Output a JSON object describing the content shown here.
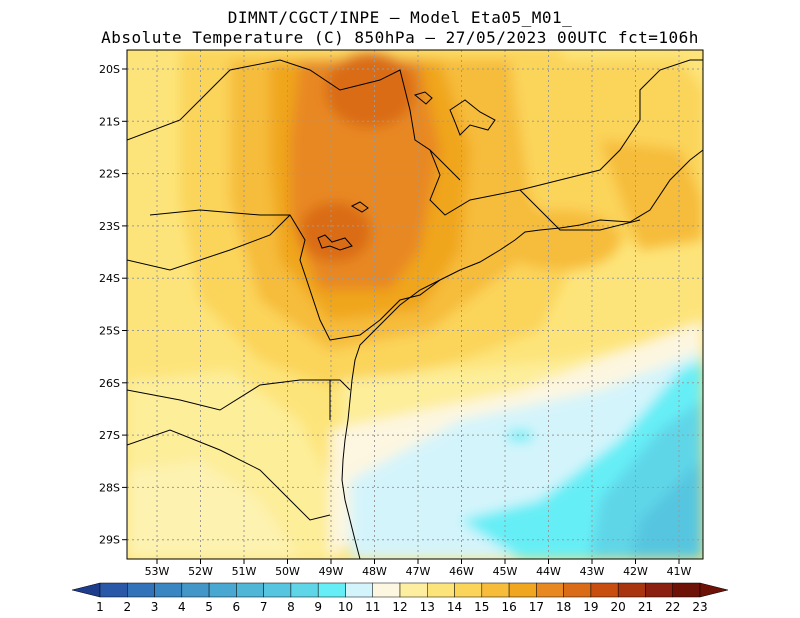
{
  "header": {
    "line1": "DIMNT/CGCT/INPE –  Model Eta05_M01_",
    "line2": "Absolute Temperature (C) 850hPa –  27/05/2023 00UTC fct=106h"
  },
  "map": {
    "lat_labels": [
      "20S",
      "21S",
      "22S",
      "23S",
      "24S",
      "25S",
      "26S",
      "27S",
      "28S",
      "29S"
    ],
    "lon_labels": [
      "53W",
      "52W",
      "51W",
      "50W",
      "49W",
      "48W",
      "47W",
      "46W",
      "45W",
      "44W",
      "43W",
      "42W",
      "41W"
    ]
  },
  "colorbar": {
    "labels": [
      "1",
      "2",
      "3",
      "4",
      "5",
      "6",
      "7",
      "8",
      "9",
      "10",
      "11",
      "12",
      "13",
      "14",
      "15",
      "16",
      "17",
      "18",
      "19",
      "20",
      "21",
      "22",
      "23"
    ],
    "colors": [
      "#1e3c8c",
      "#2a58a8",
      "#3272b8",
      "#3a86c2",
      "#4296c8",
      "#48a8d2",
      "#50b6d8",
      "#56c6e0",
      "#5ed6e8",
      "#66eef6",
      "#d4f4fb",
      "#fdf6e0",
      "#fdeea0",
      "#fde47a",
      "#fbd45a",
      "#f6bc3a",
      "#f0a61e",
      "#e88820",
      "#da6c18",
      "#c84e10",
      "#a83410",
      "#8c2010",
      "#6e1208"
    ]
  }
}
